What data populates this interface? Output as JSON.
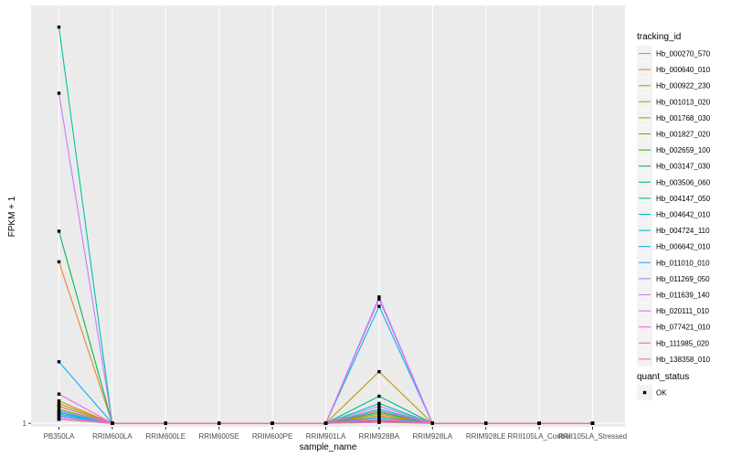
{
  "chart_data": {
    "type": "line",
    "xlabel": "sample_name",
    "ylabel": "FPKM + 1",
    "y_scale": "log10",
    "ylim": [
      0.92,
      20000
    ],
    "y_ticks": [
      {
        "value": 1,
        "label": "1"
      }
    ],
    "grid": true,
    "legend_position": "right",
    "categories": [
      "PB350LA",
      "RRIM600LA",
      "RRIM600LE",
      "RRIM600SE",
      "RRIM600PE",
      "RRIM901LA",
      "RRIM928BA",
      "RRIM928LA",
      "RRIM928LE",
      "RRII105LA_Control",
      "RRII105LA_Stressed"
    ],
    "series": [
      {
        "name": "Hb_000270_570",
        "color": "#F8766D",
        "values": [
          1.3,
          1,
          1,
          1,
          1,
          1,
          1.08,
          1,
          1,
          1,
          1
        ]
      },
      {
        "name": "Hb_000640_010",
        "color": "#EA8331",
        "values": [
          46.0,
          1,
          1,
          1,
          1,
          1,
          1.15,
          1,
          1,
          1,
          1
        ]
      },
      {
        "name": "Hb_000922_230",
        "color": "#D89000",
        "values": [
          1.5,
          1,
          1,
          1,
          1,
          1,
          1.2,
          1,
          1,
          1,
          1
        ]
      },
      {
        "name": "Hb_001013_020",
        "color": "#C09B00",
        "values": [
          1.7,
          1,
          1,
          1,
          1,
          1,
          3.4,
          1,
          1,
          1,
          1
        ]
      },
      {
        "name": "Hb_001768_030",
        "color": "#A3A500",
        "values": [
          1.6,
          1,
          1,
          1,
          1,
          1,
          1.25,
          1,
          1,
          1,
          1
        ]
      },
      {
        "name": "Hb_001827_020",
        "color": "#7CAE00",
        "values": [
          1.4,
          1,
          1,
          1,
          1,
          1,
          1.1,
          1,
          1,
          1,
          1
        ]
      },
      {
        "name": "Hb_002659_100",
        "color": "#39B600",
        "values": [
          1.1,
          1,
          1,
          1,
          1,
          1,
          1.05,
          1,
          1,
          1,
          1
        ]
      },
      {
        "name": "Hb_003147_030",
        "color": "#00BB4E",
        "values": [
          95.0,
          1,
          1,
          1,
          1,
          1,
          1.3,
          1,
          1,
          1,
          1
        ]
      },
      {
        "name": "Hb_003506_060",
        "color": "#00BF7D",
        "values": [
          1.2,
          1,
          1,
          1,
          1,
          1,
          1.9,
          1,
          1,
          1,
          1
        ]
      },
      {
        "name": "Hb_004147_050",
        "color": "#00C1A3",
        "values": [
          12000,
          1,
          1,
          1,
          1,
          1,
          1.6,
          1,
          1,
          1,
          1
        ]
      },
      {
        "name": "Hb_004642_010",
        "color": "#00BFC4",
        "values": [
          1.3,
          1,
          1,
          1,
          1,
          1,
          1.4,
          1,
          1,
          1,
          1
        ]
      },
      {
        "name": "Hb_004724_110",
        "color": "#00BAE0",
        "values": [
          1.25,
          1,
          1,
          1,
          1,
          1,
          16.0,
          1,
          1,
          1,
          1
        ]
      },
      {
        "name": "Hb_006642_010",
        "color": "#00B0F6",
        "values": [
          4.3,
          1,
          1,
          1,
          1,
          1,
          1.15,
          1,
          1,
          1,
          1
        ]
      },
      {
        "name": "Hb_011010_010",
        "color": "#35A2FF",
        "values": [
          1.2,
          1,
          1,
          1,
          1,
          1,
          1.05,
          1,
          1,
          1,
          1
        ]
      },
      {
        "name": "Hb_011269_050",
        "color": "#9590FF",
        "values": [
          1.35,
          1,
          1,
          1,
          1,
          1,
          20.0,
          1,
          1,
          1,
          1
        ]
      },
      {
        "name": "Hb_011639_140",
        "color": "#C77CFF",
        "values": [
          2500,
          1,
          1,
          1,
          1,
          1,
          1.5,
          1,
          1,
          1,
          1
        ]
      },
      {
        "name": "Hb_020111_010",
        "color": "#E76BF3",
        "values": [
          1.15,
          1,
          1,
          1,
          1,
          1,
          19.0,
          1,
          1,
          1,
          1
        ]
      },
      {
        "name": "Hb_077421_010",
        "color": "#FA62DB",
        "values": [
          2.0,
          1,
          1,
          1,
          1,
          1,
          1.35,
          1,
          1,
          1,
          1
        ]
      },
      {
        "name": "Hb_111985_020",
        "color": "#FF62BC",
        "values": [
          1.5,
          1,
          1,
          1,
          1,
          1,
          1.1,
          1,
          1,
          1,
          1
        ]
      },
      {
        "name": "Hb_138358_010",
        "color": "#FF6C91",
        "values": [
          1.1,
          1,
          1,
          1,
          1,
          1,
          1.02,
          1,
          1,
          1,
          1
        ]
      }
    ],
    "legend": {
      "color_title": "tracking_id",
      "shape_title": "quant_status",
      "shape_entries": [
        "OK"
      ]
    }
  }
}
